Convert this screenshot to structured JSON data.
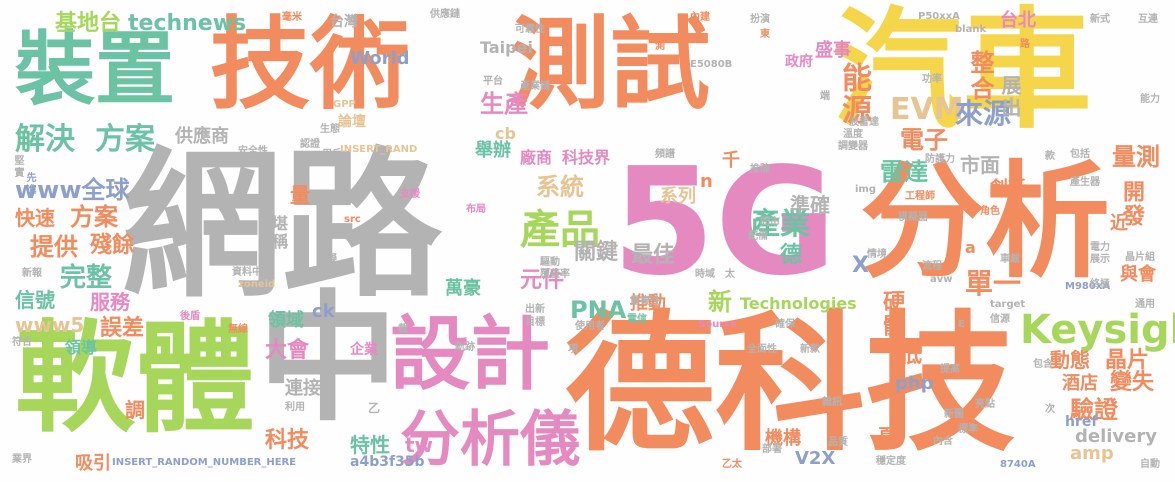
{
  "colors": {
    "orange": "#f28b5e",
    "gray": "#b3b3b3",
    "yellow": "#f5d54a",
    "green": "#a6d75b",
    "teal": "#6cc3a4",
    "pink": "#e58ac1",
    "blue": "#8da0cb",
    "tan": "#e6c494",
    "background": "#fefefe"
  },
  "words": [
    {
      "text": "網路",
      "color": "gray"
    },
    {
      "text": "5G",
      "color": "pink"
    },
    {
      "text": "德科技",
      "color": "orange"
    },
    {
      "text": "技術",
      "color": "orange"
    },
    {
      "text": "測試",
      "color": "orange"
    },
    {
      "text": "汽車",
      "color": "yellow"
    },
    {
      "text": "裝置",
      "color": "teal"
    },
    {
      "text": "分析",
      "color": "orange"
    },
    {
      "text": "軟體",
      "color": "green"
    },
    {
      "text": "中",
      "color": "gray"
    },
    {
      "text": "設計",
      "color": "pink"
    },
    {
      "text": "分析儀",
      "color": "pink"
    },
    {
      "text": "Keysight",
      "color": "green"
    },
    {
      "text": "解決",
      "color": "teal"
    },
    {
      "text": "方案",
      "color": "teal"
    },
    {
      "text": "基地台",
      "color": "green"
    },
    {
      "text": "technews",
      "color": "teal"
    },
    {
      "text": "產品",
      "color": "green"
    },
    {
      "text": "整合",
      "color": "orange"
    },
    {
      "text": "EVM",
      "color": "tan"
    },
    {
      "text": "能源",
      "color": "orange"
    },
    {
      "text": "生產",
      "color": "pink"
    },
    {
      "text": "來源",
      "color": "blue"
    },
    {
      "text": "展出",
      "color": "gray"
    },
    {
      "text": "電子",
      "color": "orange"
    },
    {
      "text": "雷達",
      "color": "teal"
    },
    {
      "text": "量測",
      "color": "orange"
    },
    {
      "text": "市面",
      "color": "gray"
    },
    {
      "text": "www全球",
      "color": "blue"
    },
    {
      "text": "快速",
      "color": "orange"
    },
    {
      "text": "方案",
      "color": "orange"
    },
    {
      "text": "提供",
      "color": "orange"
    },
    {
      "text": "殘餘",
      "color": "orange"
    },
    {
      "text": "完整",
      "color": "teal"
    },
    {
      "text": "信號",
      "color": "teal"
    },
    {
      "text": "服務",
      "color": "pink"
    },
    {
      "text": "www5",
      "color": "tan"
    },
    {
      "text": "誤差",
      "color": "orange"
    },
    {
      "text": "領導",
      "color": "teal"
    },
    {
      "text": "大會",
      "color": "pink"
    },
    {
      "text": "領域",
      "color": "teal"
    },
    {
      "text": "產業",
      "color": "teal"
    },
    {
      "text": "德",
      "color": "teal"
    },
    {
      "text": "硬體",
      "color": "orange"
    },
    {
      "text": "單一",
      "color": "orange"
    },
    {
      "text": "開發",
      "color": "orange"
    },
    {
      "text": "創新",
      "color": "orange"
    },
    {
      "text": "準確",
      "color": "gray"
    },
    {
      "text": "系列",
      "color": "tan"
    },
    {
      "text": "系統",
      "color": "tan"
    },
    {
      "text": "關鍵",
      "color": "gray"
    },
    {
      "text": "最佳",
      "color": "gray"
    },
    {
      "text": "元件",
      "color": "pink"
    },
    {
      "text": "PNA",
      "color": "teal"
    },
    {
      "text": "萬豪",
      "color": "teal"
    },
    {
      "text": "推動",
      "color": "orange"
    },
    {
      "text": "新",
      "color": "green"
    },
    {
      "text": "Technologies",
      "color": "green"
    },
    {
      "text": "科技界",
      "color": "pink"
    },
    {
      "text": "廠商",
      "color": "pink"
    },
    {
      "text": "舉辦",
      "color": "teal"
    },
    {
      "text": "盛事",
      "color": "pink"
    },
    {
      "text": "政府",
      "color": "pink"
    },
    {
      "text": "World",
      "color": "blue"
    },
    {
      "text": "Taipei",
      "color": "gray"
    },
    {
      "text": "台灣",
      "color": "gray"
    },
    {
      "text": "台北",
      "color": "pink"
    },
    {
      "text": "動態",
      "color": "orange"
    },
    {
      "text": "晶片",
      "color": "orange"
    },
    {
      "text": "變失",
      "color": "orange"
    },
    {
      "text": "驗證",
      "color": "orange"
    },
    {
      "text": "delivery",
      "color": "gray"
    },
    {
      "text": "機構",
      "color": "orange"
    },
    {
      "text": "V2X",
      "color": "blue"
    },
    {
      "text": "amp",
      "color": "tan"
    },
    {
      "text": "特性",
      "color": "teal"
    },
    {
      "text": "tw",
      "color": "pink"
    },
    {
      "text": "科技",
      "color": "orange"
    },
    {
      "text": "連接",
      "color": "gray"
    },
    {
      "text": "php",
      "color": "blue"
    },
    {
      "text": "低",
      "color": "orange"
    },
    {
      "text": "堪稱",
      "color": "gray"
    },
    {
      "text": "量",
      "color": "orange"
    },
    {
      "text": "cb",
      "color": "tan"
    },
    {
      "text": "論壇",
      "color": "tan"
    },
    {
      "text": "供應商",
      "color": "gray"
    },
    {
      "text": "調",
      "color": "orange"
    },
    {
      "text": "吸引",
      "color": "orange"
    },
    {
      "text": "企業",
      "color": "pink"
    },
    {
      "text": "a4b3f35b",
      "color": "blue"
    },
    {
      "text": "href",
      "color": "blue"
    },
    {
      "text": "酒店",
      "color": "orange"
    },
    {
      "text": "與會",
      "color": "orange"
    },
    {
      "text": "X",
      "color": "blue"
    },
    {
      "text": "ck",
      "color": "blue"
    },
    {
      "text": "INSERT_RANDOM_NUMBER_HERE",
      "color": "blue"
    },
    {
      "text": "INSERT_RAND",
      "color": "tan"
    },
    {
      "text": "千",
      "color": "orange"
    },
    {
      "text": "n",
      "color": "orange"
    },
    {
      "text": "近",
      "color": "orange"
    },
    {
      "text": "a",
      "color": "orange"
    },
    {
      "text": "頁",
      "color": "orange"
    },
    {
      "text": "安全性",
      "color": "gray"
    },
    {
      "text": "認證",
      "color": "gray"
    },
    {
      "text": "用戶",
      "color": "gray"
    },
    {
      "text": "堅實",
      "color": "gray"
    },
    {
      "text": "先進",
      "color": "blue"
    },
    {
      "text": "支援",
      "color": "pink"
    },
    {
      "text": "布局",
      "color": "pink"
    },
    {
      "text": "src",
      "color": "orange"
    },
    {
      "text": "設備",
      "color": "gray"
    },
    {
      "text": "模擬",
      "color": "gray"
    },
    {
      "text": "資料中心",
      "color": "gray"
    },
    {
      "text": "zoneid",
      "color": "tan"
    },
    {
      "text": "新報",
      "color": "gray"
    },
    {
      "text": "後盾",
      "color": "pink"
    },
    {
      "text": "無線",
      "color": "orange"
    },
    {
      "text": "符合",
      "color": "gray"
    },
    {
      "text": "業界",
      "color": "gray"
    },
    {
      "text": "利用",
      "color": "gray"
    },
    {
      "text": "乙",
      "color": "gray"
    },
    {
      "text": "載",
      "color": "gray"
    },
    {
      "text": "出新",
      "color": "gray"
    },
    {
      "text": "目標",
      "color": "gray"
    },
    {
      "text": "重複性",
      "color": "gray"
    },
    {
      "text": "使用者",
      "color": "gray"
    },
    {
      "text": "電信",
      "color": "teal"
    },
    {
      "text": "軌跡",
      "color": "gray"
    },
    {
      "text": "覆蓋率",
      "color": "gray"
    },
    {
      "text": "驅動",
      "color": "gray"
    },
    {
      "text": "時域",
      "color": "gray"
    },
    {
      "text": "太",
      "color": "gray"
    },
    {
      "text": "頻譜",
      "color": "gray"
    },
    {
      "text": "推陳",
      "color": "gray"
    },
    {
      "text": "問市",
      "color": "gray"
    },
    {
      "text": "配備",
      "color": "gray"
    },
    {
      "text": "情境",
      "color": "gray"
    },
    {
      "text": "流程",
      "color": "gray"
    },
    {
      "text": "avw",
      "color": "gray"
    },
    {
      "text": "Source",
      "color": "pink"
    },
    {
      "text": "確保",
      "color": "gray"
    },
    {
      "text": "全面性",
      "color": "gray"
    },
    {
      "text": "新款",
      "color": "gray"
    },
    {
      "text": "雜訊",
      "color": "gray"
    },
    {
      "text": "品質",
      "color": "gray"
    },
    {
      "text": "部署",
      "color": "gray"
    },
    {
      "text": "乙太",
      "color": "orange"
    },
    {
      "text": "穩定度",
      "color": "gray"
    },
    {
      "text": "內含",
      "color": "gray"
    },
    {
      "text": "8740A",
      "color": "blue"
    },
    {
      "text": "亮點",
      "color": "gray"
    },
    {
      "text": "新圖",
      "color": "gray"
    },
    {
      "text": "標準",
      "color": "gray"
    },
    {
      "text": "包含",
      "color": "gray"
    },
    {
      "text": "提高",
      "color": "gray"
    },
    {
      "text": "M980xA",
      "color": "blue"
    },
    {
      "text": "終極",
      "color": "gray"
    },
    {
      "text": "信源",
      "color": "gray"
    },
    {
      "text": "target",
      "color": "gray"
    },
    {
      "text": "E",
      "color": "gray"
    },
    {
      "text": "通用",
      "color": "gray"
    },
    {
      "text": "電力",
      "color": "gray"
    },
    {
      "text": "展示",
      "color": "gray"
    },
    {
      "text": "晶片組",
      "color": "gray"
    },
    {
      "text": "車載",
      "color": "gray"
    },
    {
      "text": "模擬器",
      "color": "gray"
    },
    {
      "text": "角色",
      "color": "orange"
    },
    {
      "text": "工程師",
      "color": "orange"
    },
    {
      "text": "產生器",
      "color": "gray"
    },
    {
      "text": "包括",
      "color": "gray"
    },
    {
      "text": "款",
      "color": "gray"
    },
    {
      "text": "img",
      "color": "gray"
    },
    {
      "text": "防護力",
      "color": "gray"
    },
    {
      "text": "調變器",
      "color": "gray"
    },
    {
      "text": "溫度",
      "color": "gray"
    },
    {
      "text": "波雷達",
      "color": "gray"
    },
    {
      "text": "功率",
      "color": "gray"
    },
    {
      "text": "平台",
      "color": "gray"
    },
    {
      "text": "產業鏈",
      "color": "gray"
    },
    {
      "text": "E5080B",
      "color": "gray"
    },
    {
      "text": "P50xxA",
      "color": "gray"
    },
    {
      "text": "blank",
      "color": "gray"
    },
    {
      "text": "毫米",
      "color": "orange"
    },
    {
      "text": "供應鏈",
      "color": "gray"
    },
    {
      "text": "可靠性",
      "color": "gray"
    },
    {
      "text": "扮演",
      "color": "gray"
    },
    {
      "text": "內建",
      "color": "orange"
    },
    {
      "text": "新式",
      "color": "gray"
    },
    {
      "text": "互連",
      "color": "gray"
    },
    {
      "text": "GPP",
      "color": "tan"
    },
    {
      "text": "生態",
      "color": "gray"
    },
    {
      "text": "測",
      "color": "orange"
    },
    {
      "text": "路",
      "color": "orange"
    },
    {
      "text": "東",
      "color": "orange"
    },
    {
      "text": "端",
      "color": "gray"
    },
    {
      "text": "能力",
      "color": "gray"
    },
    {
      "text": "自動",
      "color": "gray"
    },
    {
      "text": "項",
      "color": "gray"
    },
    {
      "text": "次",
      "color": "gray"
    }
  ]
}
